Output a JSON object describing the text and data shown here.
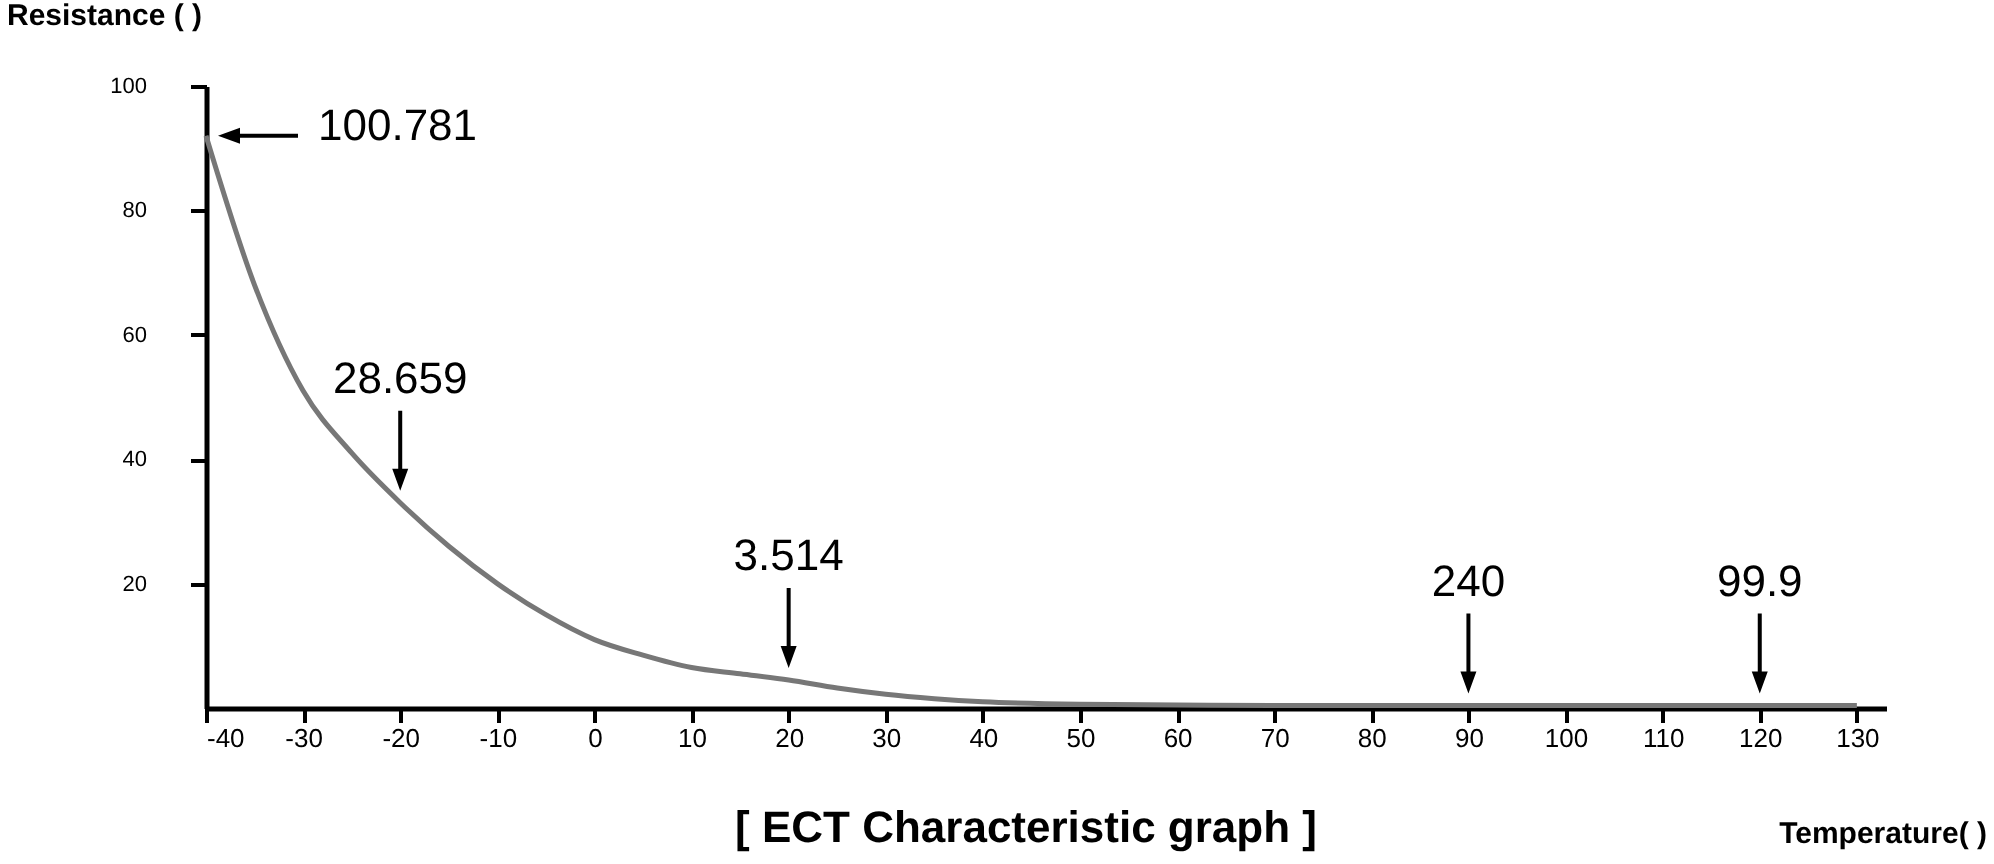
{
  "chart_data": {
    "type": "line",
    "title": "[ ECT Characteristic graph ]",
    "xlabel": "Temperature(   )",
    "ylabel": "Resistance (   )",
    "x": [
      -40,
      -35,
      -30,
      -25,
      -20,
      -15,
      -10,
      -5,
      0,
      5,
      10,
      15,
      20,
      25,
      30,
      35,
      40,
      50,
      60,
      70,
      80,
      90,
      100,
      110,
      120,
      130
    ],
    "series": [
      {
        "color": "#777777",
        "values": [
          92,
          68,
          51,
          41,
          33,
          26,
          20,
          15,
          11,
          8.5,
          6.5,
          5.5,
          4.5,
          3.2,
          2.2,
          1.5,
          1,
          0.6,
          0.5,
          0.4,
          0.4,
          0.4,
          0.4,
          0.4,
          0.4,
          0.4
        ]
      }
    ],
    "xlim": [
      -40,
      133
    ],
    "ylim": [
      0,
      100
    ],
    "xticks": [
      -40,
      -30,
      -20,
      -10,
      0,
      10,
      20,
      30,
      40,
      50,
      60,
      70,
      80,
      90,
      100,
      110,
      120,
      130
    ],
    "yticks": [
      20,
      40,
      60,
      80,
      100
    ],
    "annotations": [
      {
        "text": "100.781",
        "x": -40,
        "y": 92
      },
      {
        "text": "28.659",
        "x": -20,
        "y": 33
      },
      {
        "text": "3.514",
        "x": 20,
        "y": 4.5
      },
      {
        "text": "240",
        "x": 90,
        "y": 0.4
      },
      {
        "text": "99.9",
        "x": 120,
        "y": 0.4
      }
    ],
    "grid": false,
    "marker": "none",
    "line_style": "solid"
  }
}
